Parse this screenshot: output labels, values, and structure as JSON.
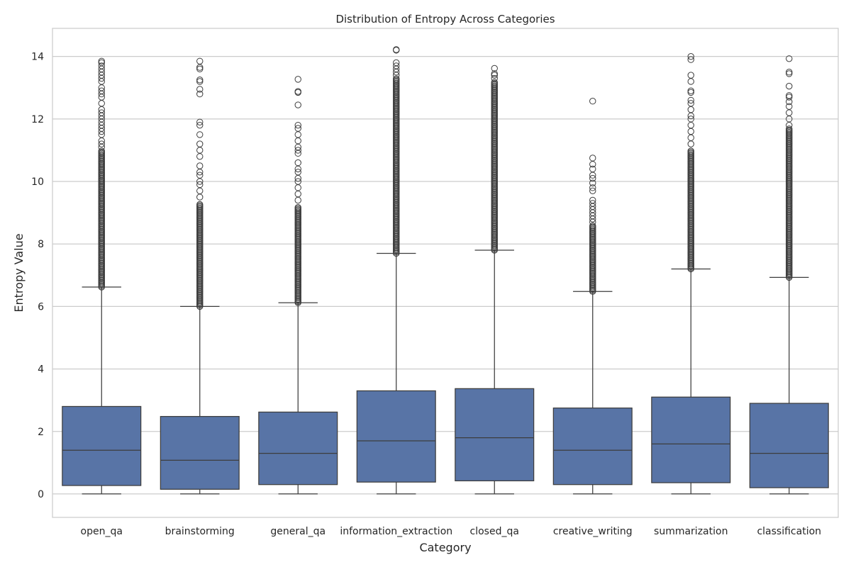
{
  "chart_data": {
    "type": "boxplot",
    "title": "Distribution of Entropy Across Categories",
    "xlabel": "Category",
    "ylabel": "Entropy Value",
    "ylim": [
      -0.75,
      14.9
    ],
    "yticks": [
      0,
      2,
      4,
      6,
      8,
      10,
      12,
      14
    ],
    "grid": "horizontal",
    "colors": {
      "box": "#5874a6",
      "line": "#3d3d3d",
      "grid": "#cccccc",
      "frame": "#cccccc"
    },
    "categories": [
      "open_qa",
      "brainstorming",
      "general_qa",
      "information_extraction",
      "closed_qa",
      "creative_writing",
      "summarization",
      "classification"
    ],
    "boxes": [
      {
        "category": "open_qa",
        "whisker_low": 0,
        "q1": 0.27,
        "median": 1.4,
        "q3": 2.8,
        "whisker_high": 6.62,
        "outlier_range": [
          6.62,
          11.0
        ],
        "outliers": [
          11.1,
          11.2,
          11.3,
          11.5,
          11.6,
          11.7,
          11.8,
          11.9,
          12.0,
          12.1,
          12.2,
          12.3,
          12.5,
          12.7,
          12.8,
          12.9,
          13.0,
          13.2,
          13.3,
          13.4,
          13.5,
          13.6,
          13.7,
          13.8,
          13.85
        ]
      },
      {
        "category": "brainstorming",
        "whisker_low": 0,
        "q1": 0.15,
        "median": 1.08,
        "q3": 2.48,
        "whisker_high": 6.0,
        "outlier_range": [
          6.0,
          9.3
        ],
        "outliers": [
          9.5,
          9.7,
          9.9,
          10.0,
          10.2,
          10.3,
          10.5,
          10.8,
          11.0,
          11.2,
          11.5,
          11.8,
          11.9,
          12.8,
          12.95,
          13.2,
          13.25,
          13.6,
          13.65,
          13.85
        ]
      },
      {
        "category": "general_qa",
        "whisker_low": 0,
        "q1": 0.3,
        "median": 1.3,
        "q3": 2.62,
        "whisker_high": 6.12,
        "outlier_range": [
          6.12,
          9.2
        ],
        "outliers": [
          9.4,
          9.6,
          9.8,
          10.0,
          10.1,
          10.3,
          10.4,
          10.6,
          10.9,
          11.0,
          11.1,
          11.3,
          11.5,
          11.7,
          11.8,
          12.45,
          12.85,
          12.88,
          13.27
        ]
      },
      {
        "category": "information_extraction",
        "whisker_low": 0,
        "q1": 0.38,
        "median": 1.7,
        "q3": 3.3,
        "whisker_high": 7.7,
        "outlier_range": [
          7.7,
          13.3
        ],
        "outliers": [
          13.4,
          13.5,
          13.6,
          13.7,
          13.8,
          14.2,
          14.22
        ]
      },
      {
        "category": "closed_qa",
        "whisker_low": 0,
        "q1": 0.42,
        "median": 1.8,
        "q3": 3.37,
        "whisker_high": 7.8,
        "outlier_range": [
          7.8,
          13.2
        ],
        "outliers": [
          13.3,
          13.4,
          13.45,
          13.62
        ]
      },
      {
        "category": "creative_writing",
        "whisker_low": 0,
        "q1": 0.3,
        "median": 1.4,
        "q3": 2.75,
        "whisker_high": 6.48,
        "outlier_range": [
          6.48,
          8.6
        ],
        "outliers": [
          8.7,
          8.8,
          8.9,
          9.0,
          9.1,
          9.2,
          9.3,
          9.4,
          9.7,
          9.8,
          9.95,
          10.1,
          10.2,
          10.4,
          10.55,
          10.75,
          12.57
        ]
      },
      {
        "category": "summarization",
        "whisker_low": 0,
        "q1": 0.36,
        "median": 1.6,
        "q3": 3.1,
        "whisker_high": 7.2,
        "outlier_range": [
          7.2,
          11.0
        ],
        "outliers": [
          11.2,
          11.4,
          11.6,
          11.8,
          12.0,
          12.1,
          12.3,
          12.5,
          12.6,
          12.85,
          12.9,
          13.2,
          13.4,
          13.9,
          14.0
        ]
      },
      {
        "category": "classification",
        "whisker_low": 0,
        "q1": 0.2,
        "median": 1.3,
        "q3": 2.9,
        "whisker_high": 6.93,
        "outlier_range": [
          6.93,
          11.7
        ],
        "outliers": [
          11.8,
          12.0,
          12.2,
          12.4,
          12.55,
          12.7,
          12.75,
          13.05,
          13.45,
          13.5,
          13.93
        ]
      }
    ]
  }
}
